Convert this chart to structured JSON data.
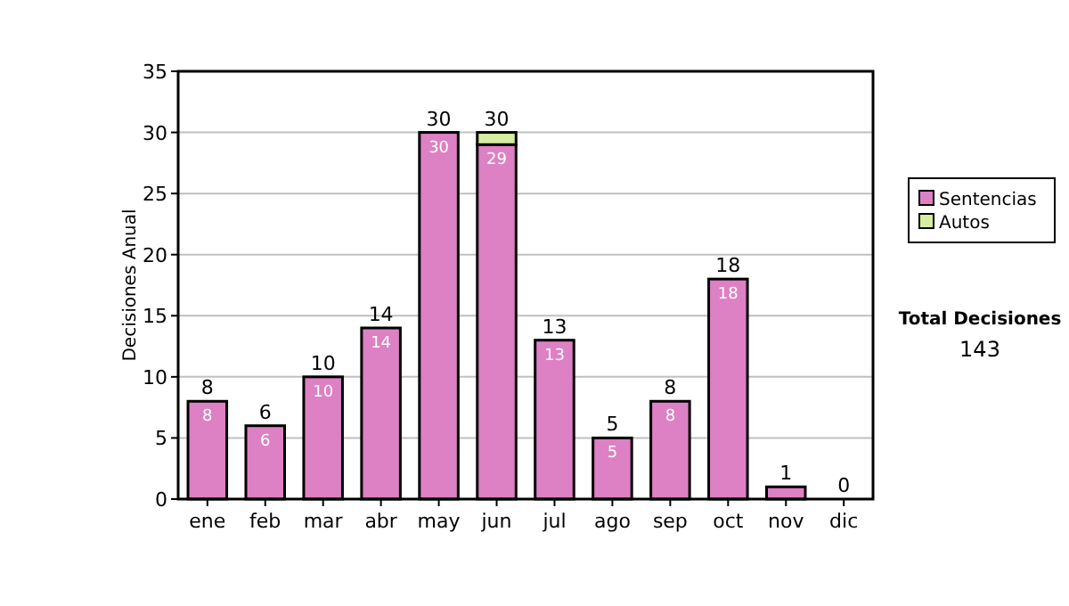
{
  "chart_data": {
    "type": "bar",
    "stacked": true,
    "ylabel": "Decisiones Anual",
    "categories": [
      "ene",
      "feb",
      "mar",
      "abr",
      "may",
      "jun",
      "jul",
      "ago",
      "sep",
      "oct",
      "nov",
      "dic"
    ],
    "series": [
      {
        "name": "Sentencias",
        "color": "#dd80c4",
        "values": [
          8,
          6,
          10,
          14,
          30,
          29,
          13,
          5,
          8,
          18,
          1,
          0
        ],
        "value_labels": [
          "8",
          "6",
          "10",
          "14",
          "30",
          "29",
          "13",
          "5",
          "8",
          "18",
          null,
          null
        ]
      },
      {
        "name": "Autos",
        "color": "#d6eca0",
        "values": [
          0,
          0,
          0,
          0,
          0,
          1,
          0,
          0,
          0,
          0,
          0,
          0
        ]
      }
    ],
    "totals": [
      "8",
      "6",
      "10",
      "14",
      "30",
      "30",
      "13",
      "5",
      "8",
      "18",
      "1",
      "0"
    ],
    "ylim": [
      0,
      35
    ],
    "yticks": [
      0,
      5,
      10,
      15,
      20,
      25,
      30,
      35
    ],
    "grid": "y",
    "legend": "right",
    "annotations": [
      "Total Decisiones",
      "143"
    ]
  }
}
